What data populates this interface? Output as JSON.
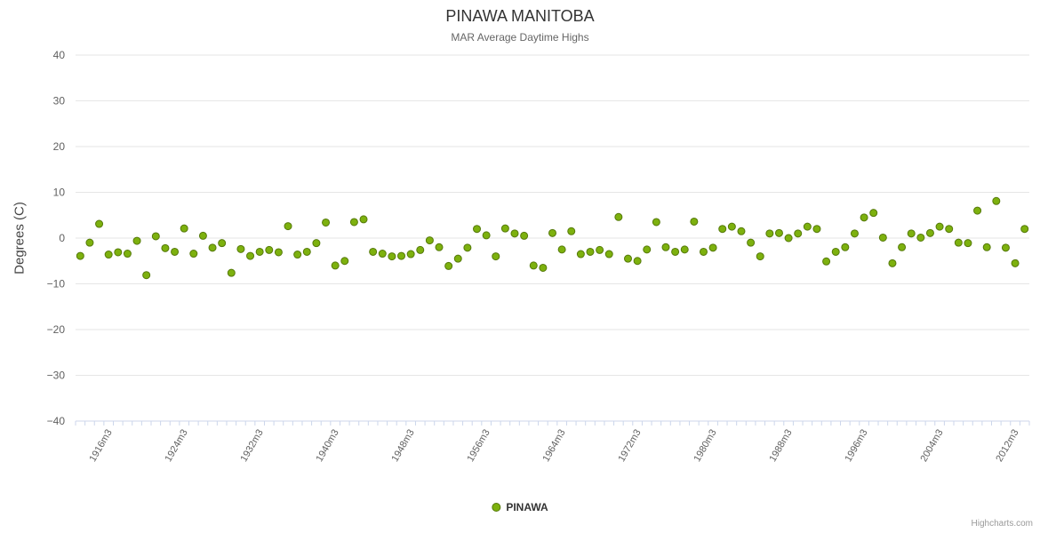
{
  "chart": {
    "title": "PINAWA MANITOBA",
    "subtitle": "MAR Average Daytime Highs",
    "ylabel": "Degrees (C)",
    "legend_label": "PINAWA",
    "credits": "Highcharts.com"
  },
  "chart_data": {
    "type": "scatter",
    "title": "PINAWA MANITOBA",
    "subtitle": "MAR Average Daytime Highs",
    "xlabel": "",
    "ylabel": "Degrees (C)",
    "ylim": [
      -40,
      40
    ],
    "grid": true,
    "legend_position": "bottom",
    "point_color": "#7db10e",
    "point_border_color": "#55790a",
    "grid_color": "#e6e6e6",
    "axis_color": "#ccd6eb",
    "label_color": "#606060",
    "yticks": [
      {
        "value": 40,
        "label": "40"
      },
      {
        "value": 30,
        "label": "30"
      },
      {
        "value": 20,
        "label": "20"
      },
      {
        "value": 10,
        "label": "10"
      },
      {
        "value": 0,
        "label": "0"
      },
      {
        "value": -10,
        "label": "−10"
      },
      {
        "value": -20,
        "label": "−20"
      },
      {
        "value": -30,
        "label": "−30"
      },
      {
        "value": -40,
        "label": "−40"
      }
    ],
    "x_label_start_index": 3,
    "x_label_every": 8,
    "visible_x_labels": [
      "1916m3",
      "1924m3",
      "1932m3",
      "1940m3",
      "1948m3",
      "1956m3",
      "1964m3",
      "1972m3",
      "1980m3",
      "1988m3",
      "1996m3",
      "2004m3",
      "2012m3"
    ],
    "categories": [
      "1913m3",
      "1914m3",
      "1915m3",
      "1916m3",
      "1917m3",
      "1918m3",
      "1919m3",
      "1920m3",
      "1921m3",
      "1922m3",
      "1923m3",
      "1924m3",
      "1925m3",
      "1926m3",
      "1927m3",
      "1928m3",
      "1929m3",
      "1930m3",
      "1931m3",
      "1932m3",
      "1933m3",
      "1934m3",
      "1935m3",
      "1936m3",
      "1937m3",
      "1938m3",
      "1939m3",
      "1940m3",
      "1941m3",
      "1942m3",
      "1943m3",
      "1944m3",
      "1945m3",
      "1946m3",
      "1947m3",
      "1948m3",
      "1949m3",
      "1950m3",
      "1951m3",
      "1952m3",
      "1953m3",
      "1954m3",
      "1955m3",
      "1956m3",
      "1957m3",
      "1958m3",
      "1959m3",
      "1960m3",
      "1961m3",
      "1962m3",
      "1963m3",
      "1964m3",
      "1965m3",
      "1966m3",
      "1967m3",
      "1968m3",
      "1969m3",
      "1970m3",
      "1971m3",
      "1972m3",
      "1973m3",
      "1974m3",
      "1975m3",
      "1976m3",
      "1977m3",
      "1978m3",
      "1979m3",
      "1980m3",
      "1981m3",
      "1982m3",
      "1983m3",
      "1984m3",
      "1985m3",
      "1986m3",
      "1987m3",
      "1988m3",
      "1989m3",
      "1990m3",
      "1991m3",
      "1992m3",
      "1993m3",
      "1994m3",
      "1995m3",
      "1996m3",
      "1997m3",
      "1998m3",
      "1999m3",
      "2000m3",
      "2001m3",
      "2002m3",
      "2003m3",
      "2004m3",
      "2005m3",
      "2006m3",
      "2007m3",
      "2008m3",
      "2009m3",
      "2010m3",
      "2011m3",
      "2012m3",
      "2013m3"
    ],
    "series": [
      {
        "name": "PINAWA",
        "values": [
          -3.9,
          -1.0,
          3.1,
          -3.6,
          -3.1,
          -3.4,
          -0.6,
          -8.1,
          0.4,
          -2.2,
          -3.0,
          2.1,
          -3.4,
          0.5,
          -2.1,
          -1.1,
          -7.6,
          -2.4,
          -3.9,
          -3.0,
          -2.6,
          -3.1,
          2.6,
          -3.6,
          -3.0,
          -1.1,
          3.4,
          -6.0,
          -5.0,
          3.5,
          4.1,
          -3.0,
          -3.4,
          -4.0,
          -3.9,
          -3.5,
          -2.6,
          -0.5,
          -2.0,
          -6.1,
          -4.5,
          -2.1,
          2.0,
          0.6,
          -4.0,
          2.1,
          1.0,
          0.5,
          -6.0,
          -6.5,
          1.1,
          -2.5,
          1.5,
          -3.5,
          -3.0,
          -2.6,
          -3.5,
          4.6,
          -4.5,
          -5.0,
          -2.5,
          3.5,
          -2.0,
          -3.0,
          -2.5,
          3.6,
          -3.0,
          -2.1,
          2.0,
          2.5,
          1.5,
          -1.0,
          -4.0,
          1.0,
          1.1,
          0.0,
          1.0,
          2.5,
          2.0,
          -5.1,
          -3.0,
          -2.0,
          1.0,
          4.5,
          5.5,
          0.1,
          -5.5,
          -2.0,
          1.0,
          0.1,
          1.1,
          2.5,
          2.0,
          -1.0,
          -1.1,
          6.0,
          -2.0,
          8.1,
          -2.1,
          -5.5,
          2.0
        ]
      }
    ]
  }
}
